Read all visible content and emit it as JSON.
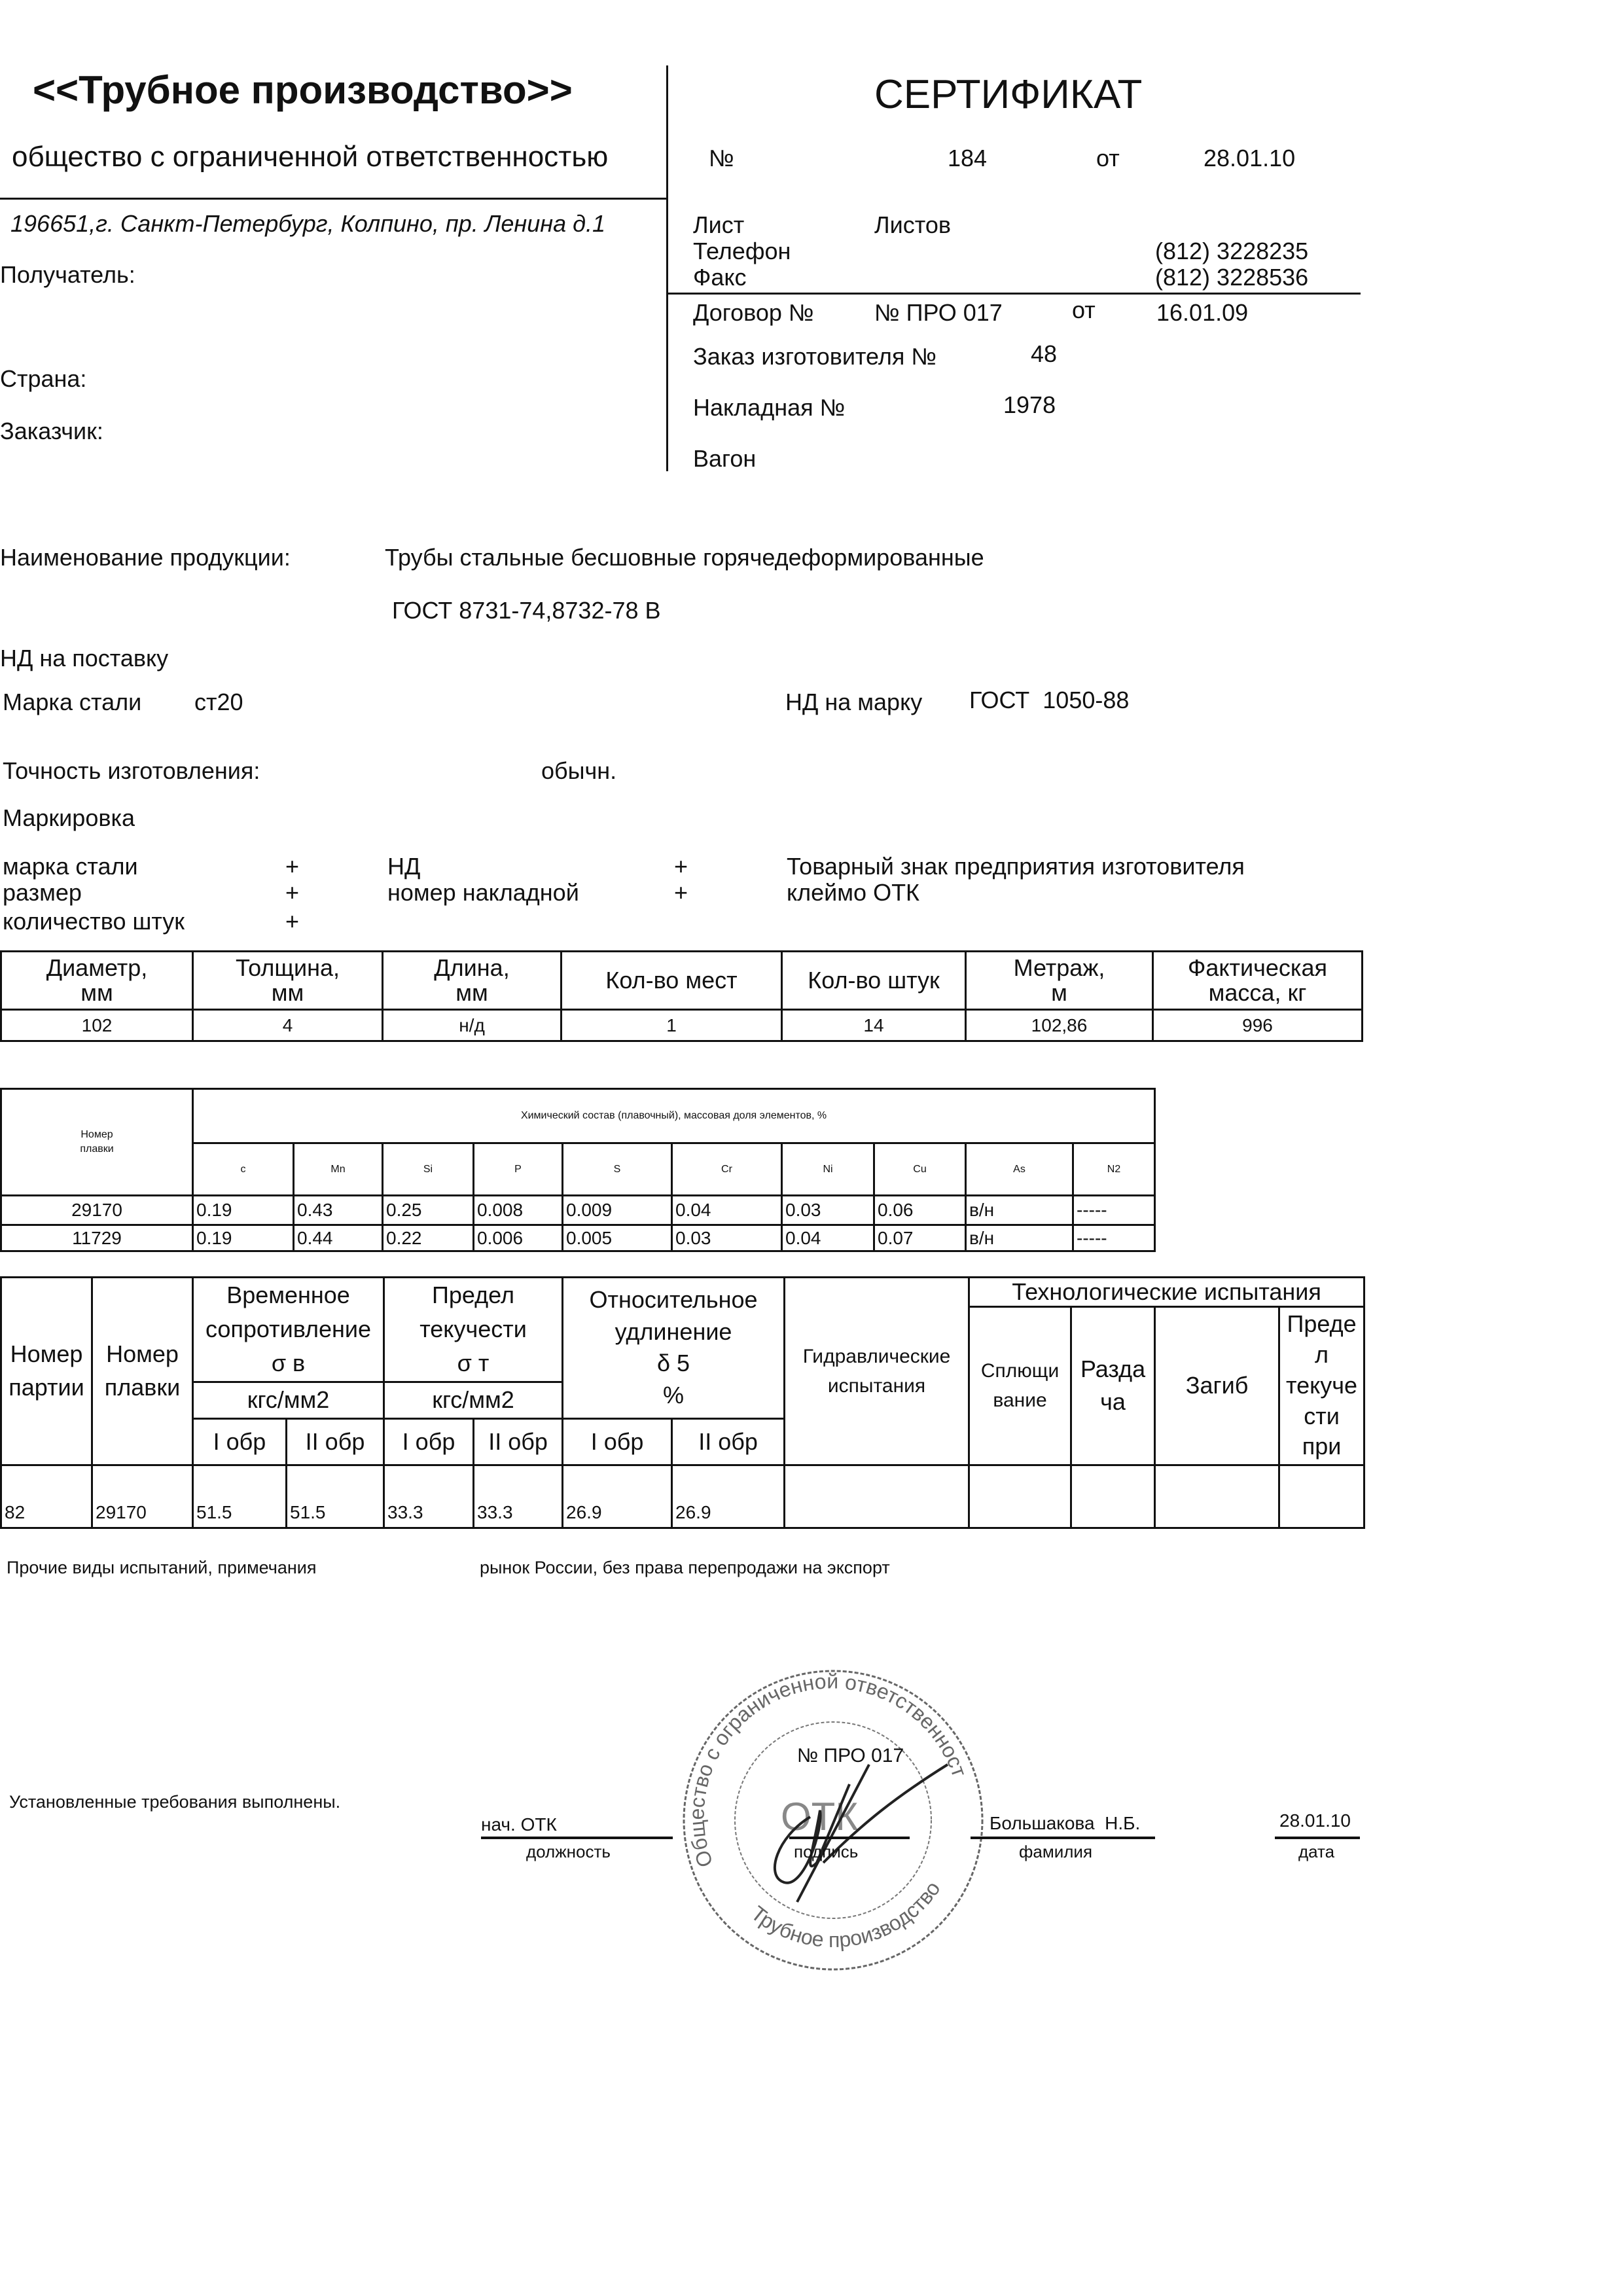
{
  "header": {
    "company_name": "<<Трубное производство>>",
    "company_form": "общество с ограниченной ответственностью",
    "address": "196651,г. Санкт-Петербург, Колпино, пр. Ленина д.1",
    "title": "СЕРТИФИКАТ",
    "number_label": "№",
    "number": "184",
    "date_label": "от",
    "date": "28.01.10"
  },
  "left_fields": {
    "recipient_label": "Получатель:",
    "country_label": "Страна:",
    "customer_label": "Заказчик:"
  },
  "right_fields": {
    "sheet_label": "Лист",
    "sheets_label": "Листов",
    "phone_label": "Телефон",
    "phone": "(812) 3228235",
    "fax_label": "Факс",
    "fax": "(812) 3228536",
    "contract_label": "Договор №",
    "contract_number": "№ ПРО 017",
    "contract_date_label": "от",
    "contract_date": "16.01.09",
    "order_label": "Заказ изготовителя №",
    "order_number": "48",
    "invoice_label": "Накладная №",
    "invoice_number": "1978",
    "wagon_label": "Вагон"
  },
  "product": {
    "name_label": "Наименование продукции:",
    "name": "Трубы стальные бесшовные горячедеформированные",
    "standard": "ГОСТ 8731-74,8732-78 В",
    "delivery_nd_label": "НД на поставку",
    "steel_grade_label": "Марка стали",
    "steel_grade": "ст20",
    "grade_nd_label": "НД на марку",
    "grade_nd": "ГОСТ  1050-88",
    "accuracy_label": "Точность изготовления:",
    "accuracy": "обычн.",
    "marking_label": "Маркировка"
  },
  "marking": [
    {
      "label": "марка стали",
      "mark": "+"
    },
    {
      "label": "размер",
      "mark": "+"
    },
    {
      "label": "количество штук",
      "mark": "+"
    },
    {
      "label": "НД",
      "mark": "+"
    },
    {
      "label": "номер накладной",
      "mark": "+"
    },
    {
      "label": "Товарный знак предприятия изготовителя",
      "mark": ""
    },
    {
      "label": "клеймо ОТК",
      "mark": ""
    }
  ],
  "dimensions_table": {
    "headers": [
      "Диаметр,\nмм",
      "Толщина,\nмм",
      "Длина,\nмм",
      "Кол-во мест",
      "Кол-во штук",
      "Метраж,\nм",
      "Фактическая\nмасса, кг"
    ],
    "row": [
      "102",
      "4",
      "н/д",
      "1",
      "14",
      "102,86",
      "996"
    ]
  },
  "chemistry_table": {
    "heat_header": "Номер\nплавки",
    "title": "Химический состав (плавочный), массовая доля элементов, %",
    "elements": [
      "c",
      "Mn",
      "Si",
      "P",
      "S",
      "Cr",
      "Ni",
      "Cu",
      "As",
      "N2"
    ],
    "rows": [
      [
        "29170",
        "0.19",
        "0.43",
        "0.25",
        "0.008",
        "0.009",
        "0.04",
        "0.03",
        "0.06",
        "в/н",
        "-----"
      ],
      [
        "11729",
        "0.19",
        "0.44",
        "0.22",
        "0.006",
        "0.005",
        "0.03",
        "0.04",
        "0.07",
        "в/н",
        "-----"
      ]
    ]
  },
  "mechanical_table": {
    "batch": "Номер\nпартии",
    "heat": "Номер\nплавки",
    "tensile": "Временное\nсопротивление\nσ  в",
    "yield": "Предел\nтекучести\nσ  т",
    "elongation": "Относительное\nудлинение\nδ 5\n%",
    "hydraulic": "Гидравлические\nиспытания",
    "tech_tests": "Технологические испытания",
    "flattening": "Сплющи\nвание",
    "expansion": "Разда\nча",
    "bend": "Загиб",
    "yield_at": "Преде\nл\nтекуче\nсти\nпри",
    "unit_kgf": "кгс/мм2",
    "sample1": "I обр",
    "sample2": "II обр",
    "row": [
      "82",
      "29170",
      "51.5",
      "51.5",
      "33.3",
      "33.3",
      "26.9",
      "26.9",
      "",
      "",
      "",
      "",
      ""
    ]
  },
  "notes": {
    "other_tests_label": "Прочие виды испытаний, примечания",
    "other_tests": "рынок  России, без права перепродажи на экспорт",
    "requirements": "Установленные требования выполнены."
  },
  "signature": {
    "position": "нач. ОТК",
    "position_caption": "должность",
    "signature_caption": "подпись",
    "name": "Большакова  Н.Б.",
    "name_caption": "фамилия",
    "date": "28.01.10",
    "date_caption": "дата",
    "stamp_number": "№ ПРО 017",
    "stamp_text_top": "Общество с ограниченной ответственностью",
    "stamp_text_bottom": "Трубное производство",
    "stamp_center": "ОТК"
  },
  "colors": {
    "ink": "#111111",
    "stamp": "#555555"
  }
}
